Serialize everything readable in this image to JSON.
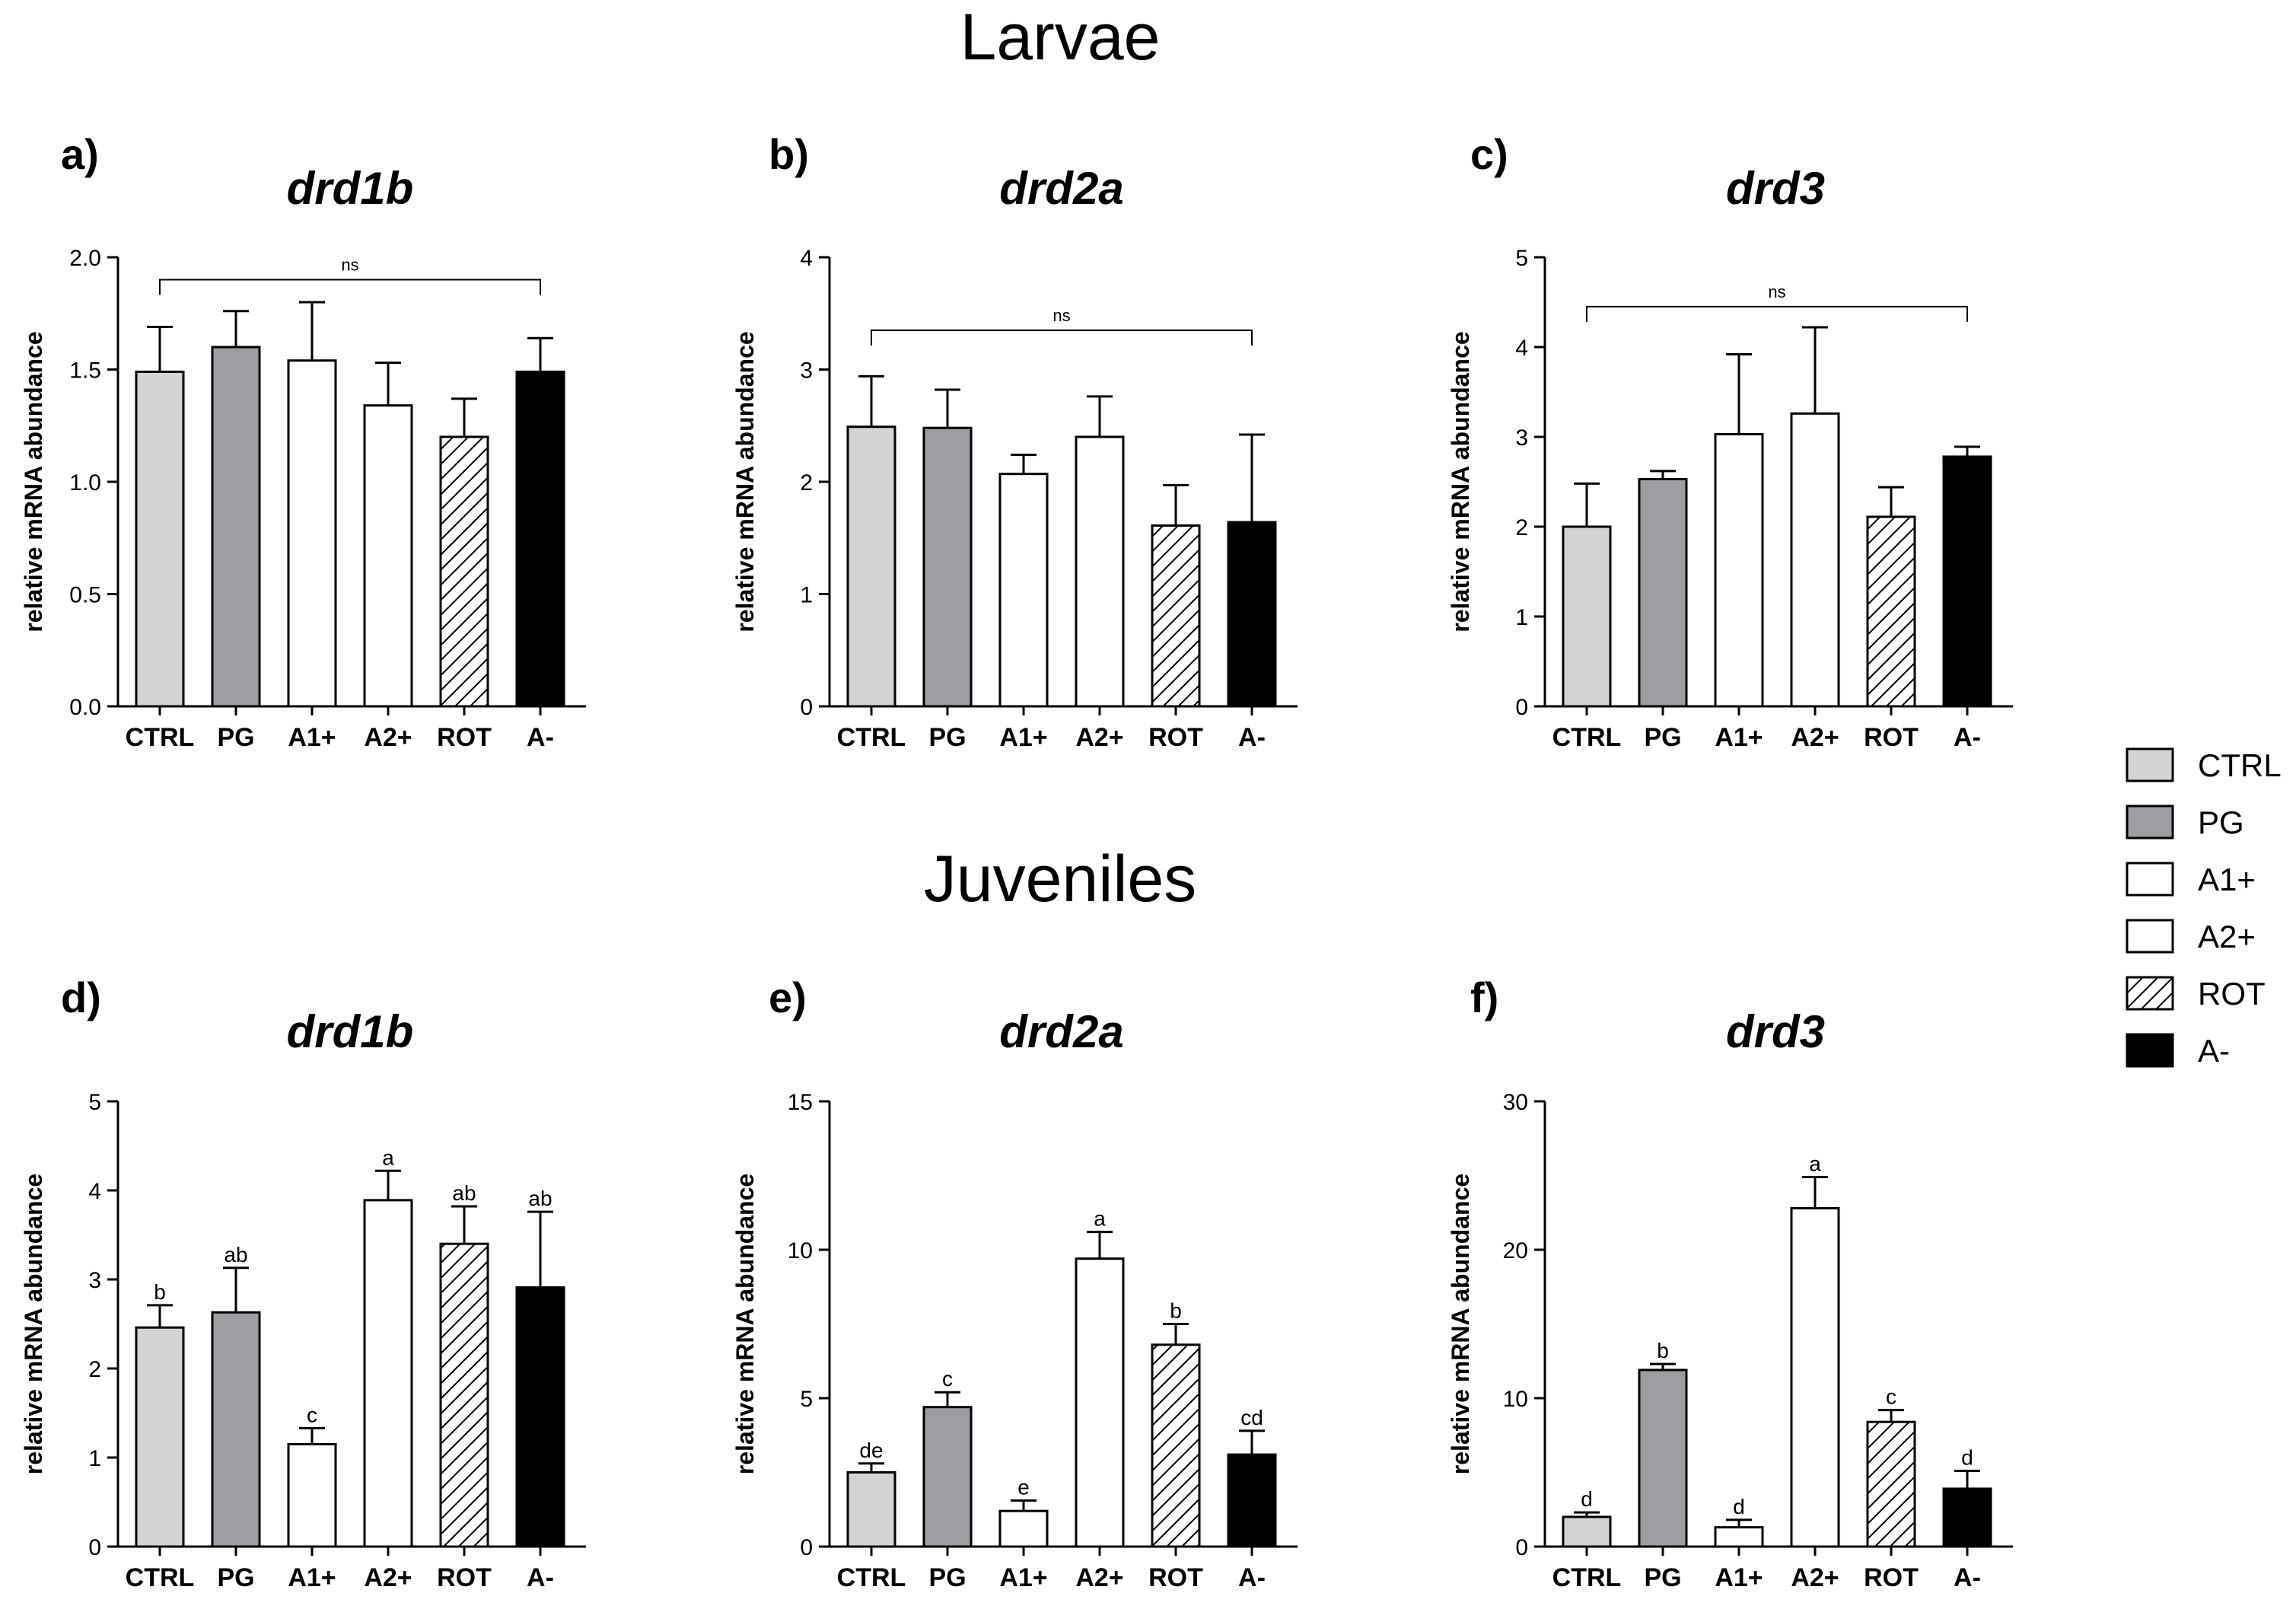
{
  "figure": {
    "sections": [
      {
        "title": "Larvae"
      },
      {
        "title": "Juveniles"
      }
    ]
  },
  "chart_data": [
    {
      "type": "bar",
      "panel_label": "a)",
      "title": "drd1b",
      "stage": "Larvae",
      "categories": [
        "CTRL",
        "PG",
        "A1+",
        "A2+",
        "ROT",
        "A-"
      ],
      "values": [
        1.49,
        1.6,
        1.54,
        1.34,
        1.2,
        1.49
      ],
      "errors": [
        0.2,
        0.16,
        0.26,
        0.19,
        0.17,
        0.15
      ],
      "ylabel": "relative mRNA abundance",
      "ylim": [
        0,
        2.0
      ],
      "yticks": [
        0.0,
        0.5,
        1.0,
        1.5,
        2.0
      ],
      "ytick_labels": [
        "0.0",
        "0.5",
        "1.0",
        "1.5",
        "2.0"
      ],
      "bracket": {
        "from": 0,
        "to": 5,
        "level": 1.9,
        "label": "ns"
      },
      "letters": null
    },
    {
      "type": "bar",
      "panel_label": "b)",
      "title": "drd2a",
      "stage": "Larvae",
      "categories": [
        "CTRL",
        "PG",
        "A1+",
        "A2+",
        "ROT",
        "A-"
      ],
      "values": [
        2.49,
        2.48,
        2.07,
        2.4,
        1.61,
        1.64
      ],
      "errors": [
        0.45,
        0.34,
        0.17,
        0.36,
        0.36,
        0.78
      ],
      "ylabel": "relative mRNA abundance",
      "ylim": [
        0,
        4
      ],
      "yticks": [
        0,
        1,
        2,
        3,
        4
      ],
      "ytick_labels": [
        "0",
        "1",
        "2",
        "3",
        "4"
      ],
      "bracket": {
        "from": 0,
        "to": 5,
        "level": 3.35,
        "label": "ns"
      },
      "letters": null
    },
    {
      "type": "bar",
      "panel_label": "c)",
      "title": "drd3",
      "stage": "Larvae",
      "categories": [
        "CTRL",
        "PG",
        "A1+",
        "A2+",
        "ROT",
        "A-"
      ],
      "values": [
        2.0,
        2.53,
        3.03,
        3.26,
        2.11,
        2.78
      ],
      "errors": [
        0.48,
        0.09,
        0.89,
        0.96,
        0.33,
        0.11
      ],
      "ylabel": "relative mRNA abundance",
      "ylim": [
        0,
        5
      ],
      "yticks": [
        0,
        1,
        2,
        3,
        4,
        5
      ],
      "ytick_labels": [
        "0",
        "1",
        "2",
        "3",
        "4",
        "5"
      ],
      "bracket": {
        "from": 0,
        "to": 5,
        "level": 4.45,
        "label": "ns"
      },
      "letters": null
    },
    {
      "type": "bar",
      "panel_label": "d)",
      "title": "drd1b",
      "stage": "Juveniles",
      "categories": [
        "CTRL",
        "PG",
        "A1+",
        "A2+",
        "ROT",
        "A-"
      ],
      "values": [
        2.46,
        2.63,
        1.15,
        3.89,
        3.4,
        2.91
      ],
      "errors": [
        0.25,
        0.5,
        0.18,
        0.33,
        0.42,
        0.85
      ],
      "ylabel": "relative mRNA abundance",
      "ylim": [
        0,
        5
      ],
      "yticks": [
        0,
        1,
        2,
        3,
        4,
        5
      ],
      "ytick_labels": [
        "0",
        "1",
        "2",
        "3",
        "4",
        "5"
      ],
      "bracket": null,
      "letters": [
        "b",
        "ab",
        "c",
        "a",
        "ab",
        "ab"
      ]
    },
    {
      "type": "bar",
      "panel_label": "e)",
      "title": "drd2a",
      "stage": "Juveniles",
      "categories": [
        "CTRL",
        "PG",
        "A1+",
        "A2+",
        "ROT",
        "A-"
      ],
      "values": [
        2.5,
        4.7,
        1.2,
        9.7,
        6.8,
        3.1
      ],
      "errors": [
        0.3,
        0.5,
        0.35,
        0.9,
        0.7,
        0.8
      ],
      "ylabel": "relative mRNA abundance",
      "ylim": [
        0,
        15
      ],
      "yticks": [
        0,
        5,
        10,
        15
      ],
      "ytick_labels": [
        "0",
        "5",
        "10",
        "15"
      ],
      "bracket": null,
      "letters": [
        "de",
        "c",
        "e",
        "a",
        "b",
        "cd"
      ]
    },
    {
      "type": "bar",
      "panel_label": "f)",
      "title": "drd3",
      "stage": "Juveniles",
      "categories": [
        "CTRL",
        "PG",
        "A1+",
        "A2+",
        "ROT",
        "A-"
      ],
      "values": [
        2.0,
        11.9,
        1.3,
        22.8,
        8.4,
        3.9
      ],
      "errors": [
        0.3,
        0.4,
        0.5,
        2.1,
        0.8,
        1.2
      ],
      "ylabel": "relative mRNA abundance",
      "ylim": [
        0,
        30
      ],
      "yticks": [
        0,
        10,
        20,
        30
      ],
      "ytick_labels": [
        "0",
        "10",
        "20",
        "30"
      ],
      "bracket": null,
      "letters": [
        "d",
        "b",
        "d",
        "a",
        "c",
        "d"
      ]
    }
  ],
  "legend": {
    "position": "right",
    "items": [
      {
        "label": "CTRL",
        "fill": "#d4d4d4",
        "pattern": "solid"
      },
      {
        "label": "PG",
        "fill": "#9d9da2",
        "pattern": "solid"
      },
      {
        "label": "A1+",
        "fill": "#ffffff",
        "pattern": "solid"
      },
      {
        "label": "A2+",
        "fill": "#ffffff",
        "pattern": "solid"
      },
      {
        "label": "ROT",
        "fill": "#ffffff",
        "pattern": "hatch"
      },
      {
        "label": "A-",
        "fill": "#000000",
        "pattern": "solid"
      }
    ]
  },
  "colors": {
    "axis": "#000000",
    "bar_stroke": "#000000",
    "CTRL": "#d4d4d4",
    "PG": "#9d9da2",
    "A1+": "#ffffff",
    "A2+": "#ffffff",
    "ROT": "#ffffff",
    "A-": "#000000"
  }
}
